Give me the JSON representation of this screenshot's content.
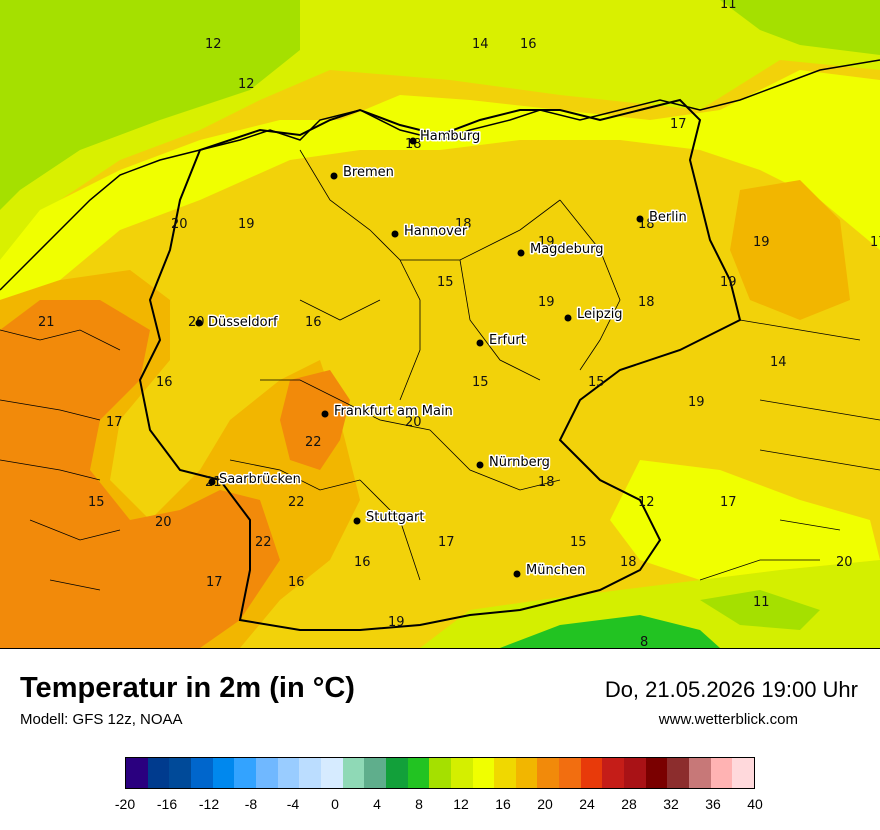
{
  "title": "Temperatur in 2m (in °C)",
  "model": "Modell: GFS 12z, NOAA",
  "datetime": "Do, 21.05.2026 19:00 Uhr",
  "site": "www.wetterblick.com",
  "cities": [
    {
      "name": "Hamburg"
    },
    {
      "name": "Bremen"
    },
    {
      "name": "Hannover"
    },
    {
      "name": "Berlin"
    },
    {
      "name": "Magdeburg"
    },
    {
      "name": "Leipzig"
    },
    {
      "name": "Düsseldorf"
    },
    {
      "name": "Erfurt"
    },
    {
      "name": "Frankfurt am Main"
    },
    {
      "name": "Nürnberg"
    },
    {
      "name": "Saarbrücken"
    },
    {
      "name": "Stuttgart"
    },
    {
      "name": "München"
    }
  ],
  "temperatures": [
    "12",
    "12",
    "14",
    "16",
    "11",
    "18",
    "17",
    "20",
    "19",
    "18",
    "19",
    "18",
    "19",
    "17",
    "15",
    "19",
    "18",
    "21",
    "20",
    "16",
    "16",
    "15",
    "15",
    "14",
    "19",
    "17",
    "20",
    "22",
    "19",
    "21",
    "22",
    "12",
    "17",
    "18",
    "15",
    "20",
    "17",
    "22",
    "16",
    "16",
    "15",
    "18",
    "17",
    "11",
    "20",
    "19",
    "8"
  ],
  "legend": {
    "colors": [
      "#2a007f",
      "#003b8e",
      "#004a99",
      "#0066cc",
      "#0088ee",
      "#33a3ff",
      "#70b8ff",
      "#99ccff",
      "#bbddff",
      "#d6ebff",
      "#8fd9b6",
      "#5fae8c",
      "#12a03a",
      "#22c322",
      "#a5e000",
      "#d4ef00",
      "#f0ff00",
      "#f0d800",
      "#f2b600",
      "#f28a0a",
      "#f26e10",
      "#e83a0a",
      "#c51d18",
      "#a91216",
      "#7a0000",
      "#8c2d2d",
      "#c77878",
      "#ffb3b3",
      "#ffd9dc"
    ],
    "ticks": [
      "-20",
      "-16",
      "-12",
      "-8",
      "-4",
      "0",
      "4",
      "8",
      "12",
      "16",
      "20",
      "24",
      "28",
      "32",
      "36",
      "40"
    ]
  }
}
